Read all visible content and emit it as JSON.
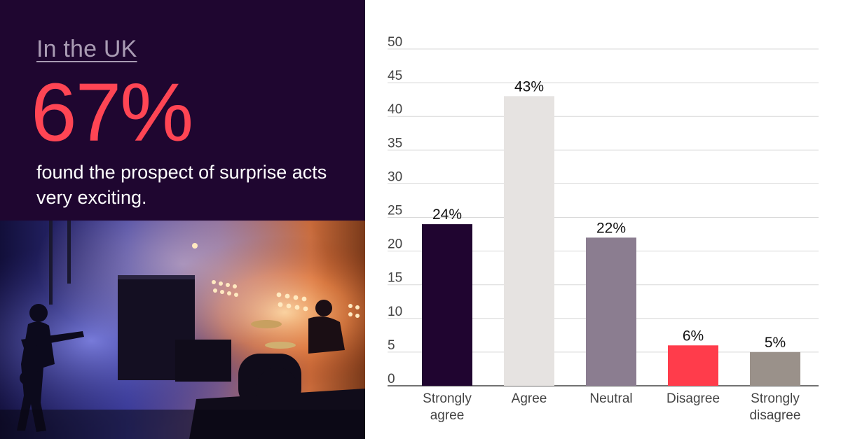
{
  "headline": {
    "kicker": "In the UK",
    "stat": "67%",
    "statement": "found the prospect of surprise acts very exciting."
  },
  "colors": {
    "panel": "#1f0630",
    "accent": "#ff4554",
    "kicker": "#a99bb3"
  },
  "chart_data": {
    "type": "bar",
    "title": "",
    "xlabel": "",
    "ylabel": "",
    "ylim": [
      0,
      50
    ],
    "yticks": [
      0,
      5,
      10,
      15,
      20,
      25,
      30,
      35,
      40,
      45,
      50
    ],
    "grid": true,
    "categories": [
      [
        "Strongly",
        "agree"
      ],
      [
        "Agree"
      ],
      [
        "Neutral"
      ],
      [
        "Disagree"
      ],
      [
        "Strongly",
        "disagree"
      ]
    ],
    "values": [
      24,
      43,
      22,
      6,
      5
    ],
    "data_labels": [
      "24%",
      "43%",
      "22%",
      "6%",
      "5%"
    ],
    "bar_colors": [
      "#200530",
      "#e6e3e1",
      "#8b7d90",
      "#ff3c4b",
      "#9a918a"
    ]
  }
}
